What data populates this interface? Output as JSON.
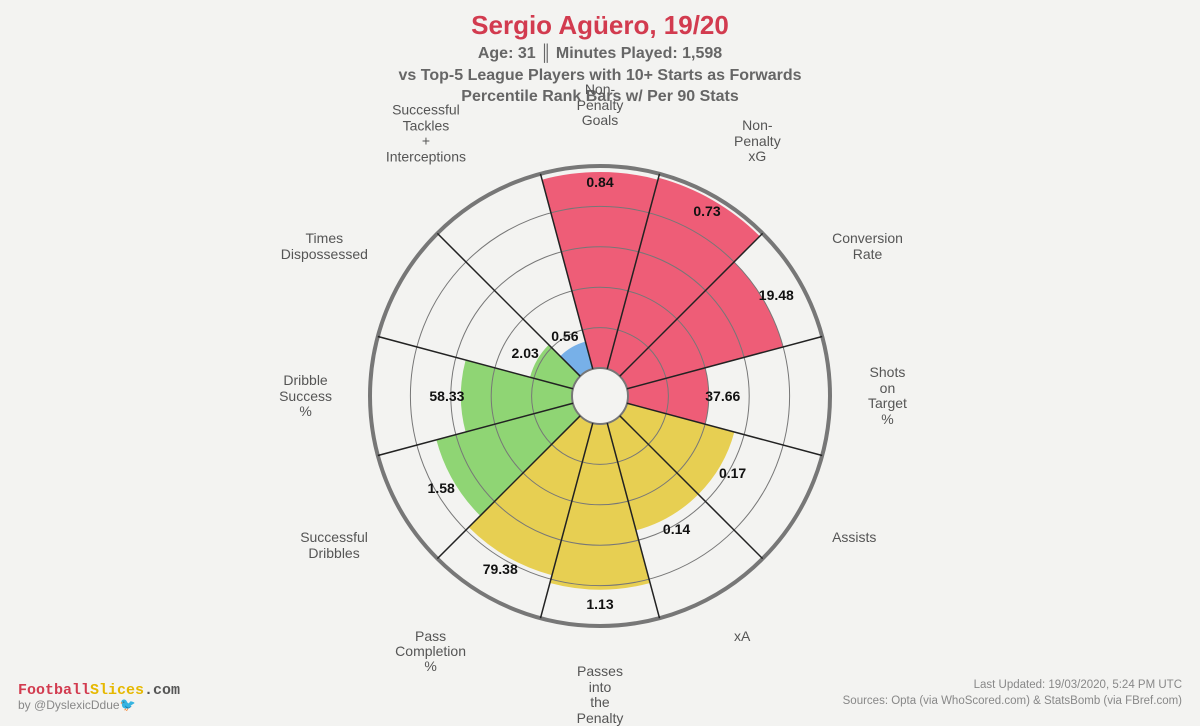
{
  "title": "Sergio Agüero, 19/20",
  "subtitle_line1": "Age: 31 ║ Minutes Played: 1,598",
  "subtitle_line2": "vs Top-5 League Players with 10+ Starts as Forwards",
  "subtitle_line3": "Percentile Rank Bars w/ Per 90 Stats",
  "chart": {
    "type": "polar-bar",
    "background_color": "#f3f3f1",
    "outer_radius": 230,
    "inner_radius": 28,
    "rings": 5,
    "ring_color": "#777777",
    "spoke_color": "#222222",
    "segments": [
      {
        "label": "Non-\nPenalty\nGoals",
        "value": "0.84",
        "percentile": 97,
        "color": "#ee5d77"
      },
      {
        "label": "Non-\nPenalty\nxG",
        "value": "0.73",
        "percentile": 98,
        "color": "#ee5d77"
      },
      {
        "label": "Conversion\nRate",
        "value": "19.48",
        "percentile": 80,
        "color": "#ee5d77"
      },
      {
        "label": "Shots\non\nTarget\n%",
        "value": "37.66",
        "percentile": 40,
        "color": "#ee5d77"
      },
      {
        "label": "Assists",
        "value": "0.17",
        "percentile": 55,
        "color": "#e7cf52"
      },
      {
        "label": "xA",
        "value": "0.14",
        "percentile": 55,
        "color": "#e7cf52"
      },
      {
        "label": "Passes\ninto\nthe\nPenalty",
        "value": "1.13",
        "percentile": 82,
        "color": "#e7cf52"
      },
      {
        "label": "Pass\nCompletion\n%",
        "value": "79.38",
        "percentile": 78,
        "color": "#e7cf52"
      },
      {
        "label": "Successful\nDribbles",
        "value": "1.58",
        "percentile": 70,
        "color": "#8fd574"
      },
      {
        "label": "Dribble\nSuccess\n%",
        "value": "58.33",
        "percentile": 55,
        "color": "#8fd574"
      },
      {
        "label": "Times\nDispossessed",
        "value": "2.03",
        "percentile": 22,
        "color": "#8fd574"
      },
      {
        "label": "Successful\nTackles\n+\nInterceptions",
        "value": "0.56",
        "percentile": 14,
        "color": "#77b0e8"
      }
    ]
  },
  "footer": {
    "brand_part1": "Football",
    "brand_part2": "Slices",
    "brand_part3": ".com",
    "byline_prefix": "by ",
    "byline_handle": "@DyslexicDdue",
    "twitter_glyph": "🐦",
    "updated": "Last Updated: 19/03/2020, 5:24 PM UTC",
    "sources": "Sources: Opta (via WhoScored.com) & StatsBomb (via FBref.com)"
  }
}
